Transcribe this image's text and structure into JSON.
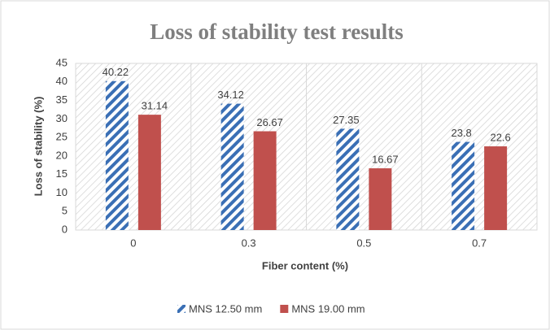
{
  "chart_data": {
    "type": "bar",
    "title": "Loss of stability test results",
    "x_label": "Fiber content (%)",
    "y_label": "Loss of stability (%)",
    "categories": [
      "0",
      "0.3",
      "0.5",
      "0.7"
    ],
    "series": [
      {
        "name": "MNS 12.50 mm",
        "color": "#3a6fb5",
        "hatch": true,
        "values": [
          40.22,
          34.12,
          27.35,
          23.8
        ]
      },
      {
        "name": "MNS 19.00 mm",
        "color": "#c0504d",
        "hatch": false,
        "values": [
          31.14,
          26.67,
          16.67,
          22.6
        ]
      }
    ],
    "ylim": [
      0,
      45
    ],
    "yticks": [
      0,
      5,
      10,
      15,
      20,
      25,
      30,
      35,
      40,
      45
    ],
    "grid": false,
    "legend": "bottom"
  }
}
